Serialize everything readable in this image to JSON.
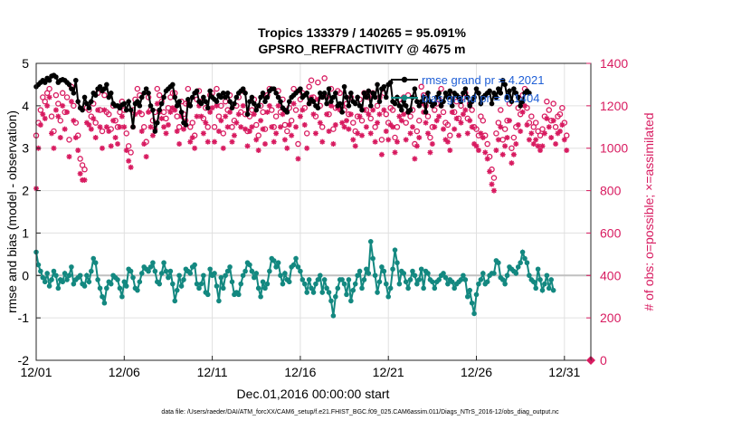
{
  "chart_data": {
    "type": "line",
    "title_line1": "Tropics 133379 / 140265 = 95.091%",
    "title_line2": "GPSRO_REFRACTIVITY @ 4675 m",
    "xlabel": "Dec.01,2016 00:00:00 start",
    "ylabel_left": "rmse and bias (model - observation)",
    "ylabel_right": "# of obs: o=possible; ×=assimilated",
    "footer": "data file: /Users/raeder/DAI/ATM_forcXX/CAM6_setup/f.e21.FHIST_BGC.f09_025.CAM6assim.011/Diags_NTrS_2016-12/obs_diag_output.nc",
    "xlim": [
      0,
      31.5
    ],
    "ylim_left": [
      -2,
      5
    ],
    "ylim_right": [
      0,
      1400
    ],
    "x_tick_labels": [
      "12/01",
      "12/06",
      "12/11",
      "12/16",
      "12/21",
      "12/26",
      "12/31"
    ],
    "x_tick_values": [
      0,
      5,
      10,
      15,
      20,
      25,
      30
    ],
    "y_left_tick_labels": [
      "-2",
      "-1",
      "0",
      "1",
      "2",
      "3",
      "4",
      "5"
    ],
    "y_right_tick_labels": [
      "0",
      "200",
      "400",
      "600",
      "800",
      "1000",
      "1200",
      "1400"
    ],
    "legend": {
      "placement": "top-right",
      "rmse_label": "rmse grand pr = 4.2021",
      "bias_label": "bias grand pr = 0.1404"
    },
    "colors": {
      "rmse": "#000000",
      "bias": "#138880",
      "obs": "#d81b60",
      "zero_line": "#c0c0c0",
      "legend_text": "#1f5fd6",
      "grid": "#e0e0e0"
    },
    "series": [
      {
        "name": "rmse",
        "axis": "left",
        "step": 0.125,
        "start": 0,
        "values": [
          4.45,
          4.5,
          4.55,
          4.6,
          4.55,
          4.65,
          4.6,
          4.7,
          4.72,
          4.68,
          4.55,
          4.6,
          4.62,
          4.6,
          4.55,
          4.5,
          4.4,
          4.3,
          4.6,
          4.1,
          3.95,
          3.9,
          4.2,
          4.05,
          3.95,
          4.1,
          4.3,
          4.25,
          4.4,
          4.45,
          4.35,
          4.4,
          4.5,
          4.2,
          4.3,
          4.05,
          4.0,
          4.0,
          3.95,
          4.02,
          4.05,
          3.9,
          4.1,
          3.9,
          3.5,
          4.05,
          4.1,
          4.0,
          4.2,
          4.3,
          4.4,
          4.3,
          4.0,
          3.9,
          3.4,
          3.6,
          3.9,
          4.05,
          4.2,
          4.35,
          4.4,
          4.45,
          4.5,
          4.2,
          4.0,
          4.1,
          3.85,
          3.6,
          3.55,
          4.15,
          4.0,
          4.2,
          4.3,
          4.35,
          4.1,
          4.05,
          4.2,
          4.1,
          3.95,
          4.35,
          4.2,
          4.15,
          4.1,
          4.25,
          4.2,
          4.3,
          4.2,
          4.3,
          4.1,
          3.95,
          4.05,
          4.2,
          4.3,
          4.35,
          4.4,
          4.3,
          3.8,
          4.1,
          4.2,
          4.05,
          3.9,
          4.0,
          4.2,
          4.3,
          4.1,
          4.2,
          4.35,
          4.4,
          4.4,
          4.3,
          4.2,
          4.1,
          3.95,
          3.9,
          3.85,
          4.1,
          4.2,
          4.25,
          4.3,
          4.35,
          4.4,
          4.2,
          4.25,
          4.3,
          4.05,
          4.15,
          4.1,
          4.0,
          3.95,
          4.3,
          4.2,
          4.3,
          4.05,
          4.4,
          4.1,
          4.2,
          4.3,
          4.0,
          4.05,
          3.85,
          4.45,
          4.2,
          4.0,
          4.3,
          4.1,
          4.05,
          4.2,
          4.0,
          3.9,
          4.3,
          4.2,
          4.35,
          4.0,
          4.3,
          4.2,
          4.5,
          4.1,
          4.4,
          4.45,
          4.2,
          4.5,
          4.55,
          4.1,
          4.05,
          4.2,
          4.0,
          3.9,
          4.1,
          4.0,
          3.85,
          3.9,
          4.2,
          4.4,
          4.1,
          4.0,
          4.1,
          4.2,
          3.85,
          4.3,
          4.1,
          4.0,
          4.05,
          4.2,
          4.3,
          4.0,
          4.1,
          4.3,
          4.2,
          4.35,
          4.0,
          4.3,
          4.25,
          4.2,
          4.1,
          4.3,
          4.4,
          4.2,
          4.0,
          4.1,
          4.2,
          4.4,
          4.3,
          4.05,
          4.2,
          4.25,
          4.3,
          4.35,
          4.05,
          4.3,
          4.2,
          4.4,
          4.3,
          4.6,
          4.5,
          4.2,
          4.35,
          4.1,
          4.4,
          4.3,
          4.2,
          4.0,
          4.1,
          4.3,
          4.35,
          4.3
        ]
      },
      {
        "name": "bias",
        "axis": "left",
        "step": 0.125,
        "start": 0,
        "values": [
          0.55,
          0.25,
          0.1,
          -0.05,
          -0.15,
          0.05,
          -0.25,
          -0.1,
          0.1,
          0.0,
          -0.3,
          -0.1,
          -0.15,
          0.05,
          -0.1,
          0.0,
          0.2,
          -0.2,
          -0.1,
          -0.05,
          0.0,
          -0.2,
          -0.25,
          0.0,
          -0.15,
          0.1,
          0.4,
          0.3,
          -0.1,
          -0.3,
          -0.5,
          -0.65,
          -0.3,
          -0.15,
          -0.2,
          0.0,
          -0.05,
          -0.1,
          -0.3,
          -0.5,
          -0.15,
          -0.25,
          0.15,
          0.1,
          -0.05,
          -0.3,
          -0.35,
          -0.15,
          0.05,
          0.2,
          0.15,
          0.1,
          0.2,
          0.3,
          0.1,
          -0.15,
          -0.2,
          0.05,
          0.3,
          0.1,
          -0.05,
          0.1,
          -0.2,
          -0.6,
          -0.35,
          0.0,
          -0.25,
          -0.1,
          0.15,
          0.1,
          0.05,
          0.2,
          0.25,
          -0.2,
          -0.3,
          -0.2,
          0.0,
          -0.4,
          -0.45,
          0.15,
          0.0,
          0.05,
          -0.25,
          -0.6,
          -0.05,
          -0.3,
          0.0,
          0.1,
          0.2,
          -0.15,
          -0.45,
          -0.4,
          -0.45,
          -0.2,
          0.0,
          0.1,
          0.3,
          0.25,
          0.1,
          -0.05,
          0.05,
          -0.3,
          -0.5,
          -0.15,
          -0.3,
          -0.2,
          0.1,
          0.4,
          0.35,
          0.2,
          0.3,
          0.0,
          -0.2,
          0.05,
          -0.1,
          -0.15,
          0.2,
          0.25,
          0.4,
          0.2,
          0.1,
          -0.1,
          -0.2,
          -0.4,
          -0.1,
          -0.3,
          -0.4,
          -0.2,
          -0.1,
          0.0,
          -0.4,
          -0.1,
          -0.3,
          -0.4,
          -0.6,
          -0.95,
          -0.5,
          -0.3,
          -0.1,
          -0.1,
          -0.2,
          -0.45,
          -0.1,
          -0.6,
          -0.35,
          -0.2,
          0.0,
          0.1,
          -0.3,
          -0.1,
          0.15,
          0.05,
          0.8,
          0.4,
          0.0,
          -0.4,
          -0.15,
          0.2,
          0.1,
          -0.2,
          -0.5,
          -0.3,
          0.15,
          0.6,
          0.3,
          -0.2,
          0.1,
          0.05,
          -0.15,
          -0.3,
          -0.1,
          0.1,
          0.0,
          -0.2,
          -0.1,
          0.15,
          -0.3,
          0.1,
          0.05,
          -0.1,
          -0.15,
          -0.3,
          -0.15,
          -0.1,
          0.0,
          0.05,
          -0.05,
          -0.2,
          -0.1,
          -0.15,
          -0.3,
          -0.2,
          -0.15,
          -0.1,
          0.0,
          -0.1,
          -0.5,
          -0.35,
          -0.65,
          -0.9,
          -0.45,
          -0.2,
          -0.1,
          0.05,
          -0.2,
          -0.15,
          0.0,
          0.05,
          0.05,
          0.35,
          0.3,
          -0.05,
          -0.1,
          -0.2,
          0.0,
          0.2,
          0.15,
          0.1,
          0.05,
          0.2,
          0.3,
          0.55,
          0.4,
          0.3,
          0.0,
          -0.1,
          -0.15,
          -0.3,
          0.15,
          -0.1,
          -0.35,
          -0.2,
          0.0,
          -0.3,
          -0.1,
          -0.35
        ]
      },
      {
        "name": "possible",
        "axis": "right",
        "marker": "circle",
        "step": 0.125,
        "start": 0,
        "values": [
          1060,
          1120,
          1180,
          1240,
          1220,
          1260,
          1280,
          1150,
          1080,
          1250,
          1210,
          1130,
          1260,
          1170,
          1240,
          1040,
          1290,
          1200,
          1120,
          1060,
          950,
          920,
          900,
          1190,
          1180,
          1150,
          1210,
          1120,
          1260,
          1180,
          1080,
          1250,
          1170,
          1160,
          1090,
          1200,
          1130,
          1100,
          1170,
          1220,
          1180,
          1070,
          1010,
          980,
          1180,
          1230,
          1280,
          1250,
          1160,
          1100,
          1030,
          1240,
          1180,
          1130,
          1170,
          1280,
          1250,
          1220,
          1170,
          1140,
          1190,
          1240,
          1260,
          1260,
          1150,
          1100,
          1220,
          1160,
          1210,
          1280,
          1100,
          1120,
          1060,
          1230,
          1270,
          1220,
          1140,
          1190,
          1100,
          1250,
          1260,
          1100,
          1280,
          1150,
          1200,
          1070,
          1220,
          1180,
          1250,
          1100,
          1130,
          1200,
          1240,
          1170,
          1270,
          1160,
          1080,
          1150,
          1180,
          1230,
          1110,
          1060,
          1200,
          1170,
          1090,
          1250,
          1280,
          1180,
          1100,
          1150,
          1270,
          1170,
          1230,
          1110,
          1080,
          1190,
          1130,
          1280,
          1180,
          1020,
          1230,
          1260,
          1190,
          1070,
          1290,
          1320,
          1240,
          1150,
          1310,
          1200,
          1100,
          1330,
          1240,
          1160,
          1280,
          1090,
          1190,
          1270,
          1260,
          1200,
          1180,
          1210,
          1160,
          1240,
          1120,
          1080,
          1150,
          1230,
          1130,
          1260,
          1180,
          1240,
          1140,
          1260,
          1100,
          1200,
          1240,
          1040,
          1260,
          1160,
          1120,
          1190,
          1180,
          1050,
          1100,
          1230,
          1210,
          1240,
          1120,
          1250,
          1150,
          1180,
          1020,
          1080,
          1130,
          1290,
          1250,
          1200,
          1150,
          1050,
          1100,
          1180,
          1210,
          1230,
          1280,
          1170,
          1120,
          1110,
          1060,
          1250,
          1170,
          1220,
          1140,
          1200,
          1240,
          1260,
          1140,
          1210,
          1180,
          1100,
          1090,
          1060,
          1150,
          1130,
          1060,
          1020,
          960,
          900,
          860,
          1070,
          1120,
          1180,
          1040,
          1090,
          1130,
          1210,
          1000,
          1050,
          1100,
          1190,
          1160,
          1250,
          1280,
          1190,
          1120,
          1150,
          1100,
          1120,
          1080,
          1060,
          1090,
          1150,
          1220,
          1180,
          1130,
          1210,
          1100,
          1150,
          1160,
          1190,
          1120,
          1060
        ]
      },
      {
        "name": "assimilated",
        "axis": "right",
        "marker": "asterisk",
        "step": 0.125,
        "start": 0,
        "values": [
          810,
          1000,
          1110,
          1160,
          1140,
          1200,
          1240,
          1070,
          1000,
          1180,
          1150,
          1050,
          1200,
          1090,
          1170,
          960,
          1220,
          1130,
          1050,
          990,
          880,
          850,
          850,
          1120,
          1110,
          1090,
          1140,
          1050,
          1180,
          1100,
          1000,
          1180,
          1100,
          1080,
          1010,
          1130,
          1050,
          1020,
          1100,
          1150,
          1100,
          990,
          940,
          910,
          1100,
          1160,
          1210,
          1170,
          1080,
          1020,
          960,
          1170,
          1100,
          1060,
          1090,
          1210,
          1170,
          1140,
          1100,
          1070,
          1110,
          1170,
          1190,
          1180,
          1080,
          1020,
          1150,
          1090,
          1130,
          1210,
          1030,
          1050,
          1000,
          1150,
          1200,
          1150,
          1070,
          1120,
          1030,
          1170,
          1190,
          1030,
          1200,
          1080,
          1130,
          1000,
          1150,
          1100,
          1170,
          1030,
          1060,
          1120,
          1160,
          1100,
          1200,
          1090,
          1010,
          1080,
          1100,
          1160,
          1040,
          990,
          1130,
          1090,
          1020,
          1170,
          1200,
          1100,
          1030,
          1070,
          1200,
          1100,
          1160,
          1040,
          1000,
          1110,
          1060,
          1210,
          1100,
          950,
          1150,
          1180,
          1110,
          1000,
          1210,
          1240,
          1160,
          1070,
          1230,
          1120,
          1030,
          1250,
          1160,
          1080,
          1200,
          1020,
          1110,
          1190,
          1180,
          1120,
          1100,
          1130,
          1090,
          1160,
          1040,
          1010,
          1070,
          1150,
          1060,
          1180,
          1100,
          1160,
          1070,
          1180,
          1030,
          1120,
          1160,
          970,
          1180,
          1080,
          1040,
          1110,
          1100,
          980,
          1030,
          1150,
          1130,
          1160,
          1040,
          1170,
          1070,
          1100,
          950,
          1010,
          1050,
          1210,
          1170,
          1120,
          1070,
          980,
          1020,
          1100,
          1130,
          1150,
          1200,
          1090,
          1040,
          1030,
          990,
          1170,
          1090,
          1140,
          1060,
          1120,
          1160,
          1180,
          1070,
          1130,
          1100,
          1020,
          1010,
          990,
          1070,
          1050,
          980,
          950,
          890,
          830,
          800,
          990,
          1040,
          1100,
          970,
          1010,
          1050,
          1130,
          930,
          970,
          1020,
          1110,
          1080,
          1170,
          1200,
          1110,
          1040,
          1070,
          1020,
          1040,
          1010,
          990,
          1010,
          1070,
          1140,
          1100,
          1050,
          1130,
          1020,
          1070,
          1080,
          1110,
          1040,
          990
        ]
      }
    ],
    "reference_line": {
      "axis": "left",
      "value": 0
    },
    "end_marker": {
      "axis": "right",
      "x": 31.5,
      "value": 0
    }
  }
}
